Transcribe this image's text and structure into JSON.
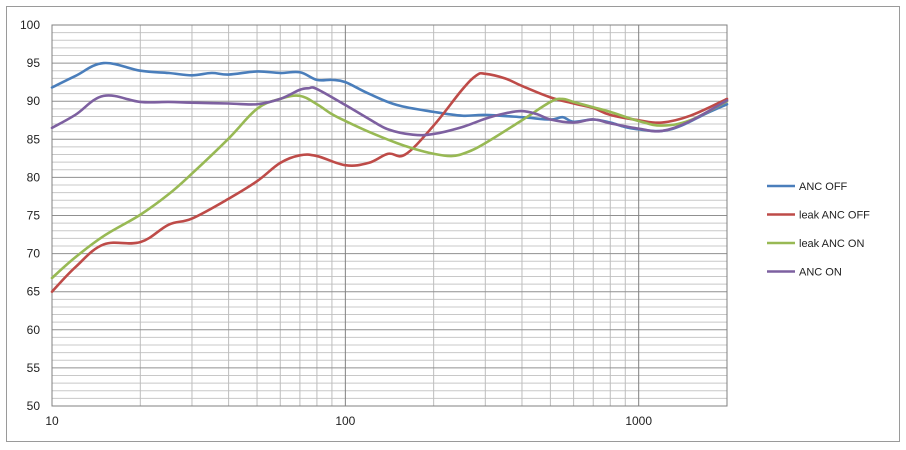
{
  "chart_data": {
    "type": "line",
    "title": "",
    "xlabel": "",
    "ylabel": "",
    "x_scale": "log",
    "xlim": [
      10,
      2000
    ],
    "ylim": [
      50,
      100
    ],
    "y_ticks": [
      50,
      55,
      60,
      65,
      70,
      75,
      80,
      85,
      90,
      95,
      100
    ],
    "x_tick_labels": [
      {
        "value": 10,
        "label": "10"
      },
      {
        "value": 100,
        "label": "100"
      },
      {
        "value": 1000,
        "label": "1000"
      }
    ],
    "grid": true,
    "legend_position": "right",
    "series": [
      {
        "name": "ANC OFF",
        "color": "#4a7ebb",
        "points": [
          [
            10,
            91.8
          ],
          [
            12,
            93.3
          ],
          [
            15,
            95
          ],
          [
            20,
            94
          ],
          [
            25,
            93.7
          ],
          [
            30,
            93.4
          ],
          [
            35,
            93.7
          ],
          [
            40,
            93.5
          ],
          [
            50,
            93.9
          ],
          [
            60,
            93.7
          ],
          [
            70,
            93.8
          ],
          [
            80,
            92.8
          ],
          [
            90,
            92.8
          ],
          [
            100,
            92.5
          ],
          [
            120,
            91
          ],
          [
            150,
            89.5
          ],
          [
            200,
            88.6
          ],
          [
            250,
            88.1
          ],
          [
            300,
            88.2
          ],
          [
            400,
            87.9
          ],
          [
            500,
            87.6
          ],
          [
            550,
            87.9
          ],
          [
            600,
            87.3
          ],
          [
            700,
            87.6
          ],
          [
            800,
            87.2
          ],
          [
            900,
            86.6
          ],
          [
            1000,
            86.3
          ],
          [
            1200,
            86.1
          ],
          [
            1400,
            86.8
          ],
          [
            1700,
            88.4
          ],
          [
            2000,
            89.6
          ]
        ]
      },
      {
        "name": "leak ANC OFF",
        "color": "#be4b48",
        "points": [
          [
            10,
            65
          ],
          [
            12,
            68.2
          ],
          [
            15,
            71.2
          ],
          [
            20,
            71.5
          ],
          [
            25,
            73.8
          ],
          [
            30,
            74.6
          ],
          [
            40,
            77.2
          ],
          [
            50,
            79.5
          ],
          [
            60,
            81.9
          ],
          [
            70,
            82.9
          ],
          [
            80,
            82.8
          ],
          [
            100,
            81.6
          ],
          [
            120,
            81.9
          ],
          [
            140,
            83.1
          ],
          [
            160,
            83
          ],
          [
            200,
            86.8
          ],
          [
            250,
            91.5
          ],
          [
            280,
            93.4
          ],
          [
            300,
            93.6
          ],
          [
            350,
            93
          ],
          [
            400,
            92
          ],
          [
            500,
            90.5
          ],
          [
            600,
            89.7
          ],
          [
            700,
            89.1
          ],
          [
            800,
            88.2
          ],
          [
            1000,
            87.5
          ],
          [
            1200,
            87.2
          ],
          [
            1500,
            88.1
          ],
          [
            2000,
            90.3
          ]
        ]
      },
      {
        "name": "leak ANC ON",
        "color": "#98b954",
        "points": [
          [
            10,
            66.8
          ],
          [
            12,
            69.5
          ],
          [
            15,
            72.3
          ],
          [
            20,
            75.1
          ],
          [
            25,
            77.8
          ],
          [
            30,
            80.5
          ],
          [
            40,
            85.1
          ],
          [
            50,
            89
          ],
          [
            60,
            90.3
          ],
          [
            70,
            90.7
          ],
          [
            80,
            89.6
          ],
          [
            90,
            88.3
          ],
          [
            100,
            87.4
          ],
          [
            120,
            86
          ],
          [
            150,
            84.5
          ],
          [
            170,
            83.8
          ],
          [
            200,
            83.1
          ],
          [
            230,
            82.8
          ],
          [
            260,
            83.3
          ],
          [
            300,
            84.5
          ],
          [
            400,
            87.5
          ],
          [
            500,
            89.9
          ],
          [
            550,
            90.3
          ],
          [
            600,
            89.9
          ],
          [
            700,
            89.2
          ],
          [
            800,
            88.6
          ],
          [
            1000,
            87.4
          ],
          [
            1200,
            86.8
          ],
          [
            1500,
            87.5
          ],
          [
            2000,
            90
          ]
        ]
      },
      {
        "name": "ANC ON",
        "color": "#7d60a0",
        "points": [
          [
            10,
            86.5
          ],
          [
            12,
            88.2
          ],
          [
            15,
            90.7
          ],
          [
            20,
            89.9
          ],
          [
            25,
            89.9
          ],
          [
            30,
            89.8
          ],
          [
            40,
            89.7
          ],
          [
            50,
            89.6
          ],
          [
            60,
            90.3
          ],
          [
            70,
            91.5
          ],
          [
            75,
            91.7
          ],
          [
            80,
            91.6
          ],
          [
            100,
            89.5
          ],
          [
            120,
            87.7
          ],
          [
            140,
            86.3
          ],
          [
            170,
            85.6
          ],
          [
            200,
            85.7
          ],
          [
            250,
            86.6
          ],
          [
            300,
            87.7
          ],
          [
            350,
            88.4
          ],
          [
            400,
            88.7
          ],
          [
            450,
            88.3
          ],
          [
            500,
            87.6
          ],
          [
            600,
            87.2
          ],
          [
            700,
            87.6
          ],
          [
            800,
            87.1
          ],
          [
            1000,
            86.4
          ],
          [
            1200,
            86.1
          ],
          [
            1500,
            87.4
          ],
          [
            2000,
            90.1
          ]
        ]
      }
    ]
  }
}
